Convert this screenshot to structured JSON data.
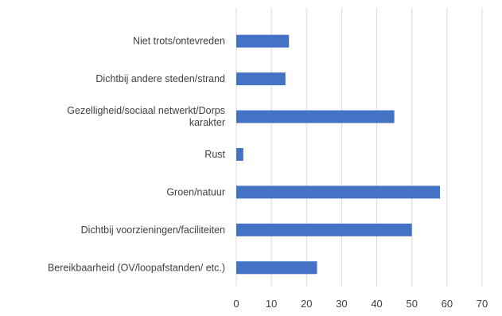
{
  "chart_data": {
    "type": "bar",
    "orientation": "horizontal",
    "categories": [
      [
        "Niet trots/ontevreden"
      ],
      [
        "Dichtbij andere steden/strand"
      ],
      [
        "Gezelligheid/sociaal netwerkt/Dorps",
        "karakter"
      ],
      [
        "Rust"
      ],
      [
        "Groen/natuur"
      ],
      [
        "Dichtbij voorzieningen/faciliteiten"
      ],
      [
        "Bereikbaarheid (OV/loopafstanden/ etc.)"
      ]
    ],
    "values": [
      15,
      14,
      45,
      2,
      58,
      50,
      23
    ],
    "xlim": [
      0,
      70
    ],
    "xticks": [
      "0",
      "10",
      "20",
      "30",
      "40",
      "50",
      "60",
      "70"
    ],
    "title": "",
    "xlabel": "",
    "ylabel": "",
    "grid": "vertical",
    "legend": "none",
    "bar_color": "#4472c4",
    "grid_color": "#d9d9d9"
  }
}
